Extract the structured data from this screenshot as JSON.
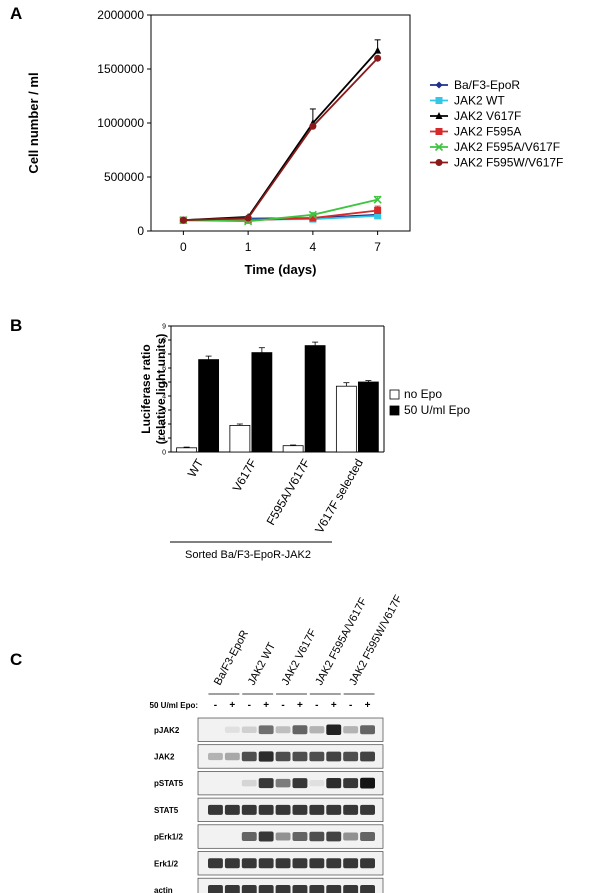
{
  "panels": {
    "a": {
      "letter": "A"
    },
    "b": {
      "letter": "B"
    },
    "c": {
      "letter": "C"
    }
  },
  "chart_data": [
    {
      "type": "line",
      "panel": "A",
      "xlabel": "Time (days)",
      "ylabel": "Cell number / ml",
      "x": [
        "0",
        "1",
        "4",
        "7"
      ],
      "yticks": [
        "0",
        "500000",
        "1000000",
        "1500000",
        "2000000"
      ],
      "ylim": [
        0,
        2000000
      ],
      "legend_position": "right",
      "series": [
        {
          "name": "Ba/F3-EpoR",
          "color": "#1f2f8f",
          "marker": "diamond",
          "values": [
            100000,
            115000,
            120000,
            150000
          ],
          "errors": [
            0,
            0,
            0,
            0
          ]
        },
        {
          "name": "JAK2 WT",
          "color": "#33c6e6",
          "marker": "square",
          "values": [
            100000,
            105000,
            110000,
            140000
          ],
          "errors": [
            0,
            0,
            0,
            0
          ]
        },
        {
          "name": "JAK2 V617F",
          "color": "#000000",
          "marker": "triangle",
          "values": [
            100000,
            130000,
            1000000,
            1670000
          ],
          "errors": [
            0,
            0,
            130000,
            100000
          ]
        },
        {
          "name": "JAK2 F595A",
          "color": "#d62a2a",
          "marker": "square",
          "values": [
            100000,
            100000,
            120000,
            190000
          ],
          "errors": [
            0,
            0,
            0,
            40000
          ]
        },
        {
          "name": "JAK2 F595A/V617F",
          "color": "#3ec43e",
          "marker": "x",
          "values": [
            100000,
            90000,
            150000,
            290000
          ],
          "errors": [
            0,
            0,
            20000,
            30000
          ]
        },
        {
          "name": "JAK2 F595W/V617F",
          "color": "#8a1a1a",
          "marker": "circle",
          "values": [
            100000,
            120000,
            970000,
            1600000
          ],
          "errors": [
            0,
            0,
            0,
            0
          ]
        }
      ]
    },
    {
      "type": "bar",
      "panel": "B",
      "ylabel": "Luciferase ratio\n(relative light units)",
      "yticks": [
        "0",
        "1",
        "2",
        "3",
        "4",
        "5",
        "6",
        "7",
        "8",
        "9"
      ],
      "ylim": [
        0,
        9
      ],
      "categories": [
        "WT",
        "V617F",
        "F595A/V617F",
        "V617F selected"
      ],
      "group_label": "Sorted Ba/F3-EpoR-JAK2",
      "legend_position": "right",
      "series": [
        {
          "name": "no Epo",
          "color": "#ffffff",
          "values": [
            0.3,
            1.9,
            0.45,
            4.7
          ],
          "errors": [
            0.05,
            0.1,
            0.05,
            0.25
          ]
        },
        {
          "name": "50 U/ml Epo",
          "color": "#000000",
          "values": [
            6.6,
            7.1,
            7.6,
            5.0
          ],
          "errors": [
            0.25,
            0.35,
            0.25,
            0.1
          ]
        }
      ]
    }
  ],
  "blot": {
    "panel": "C",
    "samples": [
      "Ba/F3-EpoR",
      "JAK2 WT",
      "JAK2 V617F",
      "JAK2 F595A/V617F",
      "JAK2 F595W/V617F"
    ],
    "treatment_label": "50 U/ml Epo:",
    "treatment": [
      "-",
      "+",
      "-",
      "+",
      "-",
      "+",
      "-",
      "+",
      "-",
      "+"
    ],
    "rows": [
      {
        "label": "pJAK2",
        "intensity": [
          0.0,
          0.05,
          0.12,
          0.55,
          0.2,
          0.6,
          0.25,
          0.9,
          0.25,
          0.6
        ]
      },
      {
        "label": "JAK2",
        "intensity": [
          0.25,
          0.3,
          0.7,
          0.85,
          0.7,
          0.7,
          0.7,
          0.75,
          0.7,
          0.75
        ]
      },
      {
        "label": "pSTAT5",
        "intensity": [
          0.0,
          0.0,
          0.1,
          0.8,
          0.5,
          0.8,
          0.05,
          0.85,
          0.8,
          0.95
        ]
      },
      {
        "label": "STAT5",
        "intensity": [
          0.8,
          0.8,
          0.8,
          0.8,
          0.8,
          0.8,
          0.8,
          0.8,
          0.8,
          0.8
        ]
      },
      {
        "label": "pErk1/2",
        "intensity": [
          0.0,
          0.0,
          0.6,
          0.8,
          0.4,
          0.6,
          0.7,
          0.75,
          0.4,
          0.6
        ]
      },
      {
        "label": "Erk1/2",
        "intensity": [
          0.8,
          0.8,
          0.8,
          0.8,
          0.8,
          0.8,
          0.8,
          0.8,
          0.8,
          0.8
        ]
      },
      {
        "label": "actin",
        "intensity": [
          0.8,
          0.8,
          0.8,
          0.8,
          0.8,
          0.8,
          0.8,
          0.8,
          0.8,
          0.8
        ]
      }
    ]
  }
}
